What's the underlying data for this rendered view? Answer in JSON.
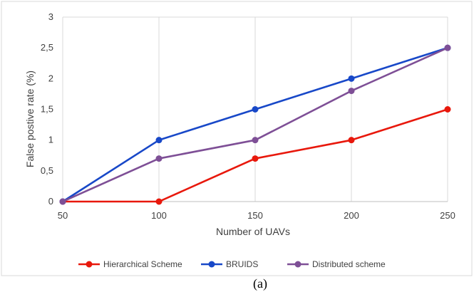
{
  "chart_data": {
    "type": "line",
    "title": "",
    "xlabel": "Number of UAVs",
    "ylabel": "False postive rate (%)",
    "x": [
      50,
      100,
      150,
      200,
      250
    ],
    "xtick_labels": [
      "50",
      "100",
      "150",
      "200",
      "250"
    ],
    "ytick_labels": [
      "0",
      "0,5",
      "1",
      "1,5",
      "2",
      "2,5",
      "3"
    ],
    "yticks": [
      0,
      0.5,
      1,
      1.5,
      2,
      2.5,
      3
    ],
    "xlim": [
      50,
      250
    ],
    "ylim": [
      0,
      3
    ],
    "grid": "vertical",
    "legend_position": "bottom",
    "series": [
      {
        "name": "Hierarchical Scheme",
        "color": "#e8180c",
        "values": [
          0,
          0,
          0.7,
          1,
          1.5
        ]
      },
      {
        "name": "BRUIDS",
        "color": "#1848c8",
        "values": [
          0,
          1,
          1.5,
          2,
          2.5
        ]
      },
      {
        "name": "Distributed scheme",
        "color": "#7e4f96",
        "values": [
          0,
          0.7,
          1,
          1.8,
          2.5
        ]
      }
    ]
  },
  "caption": "(a)"
}
